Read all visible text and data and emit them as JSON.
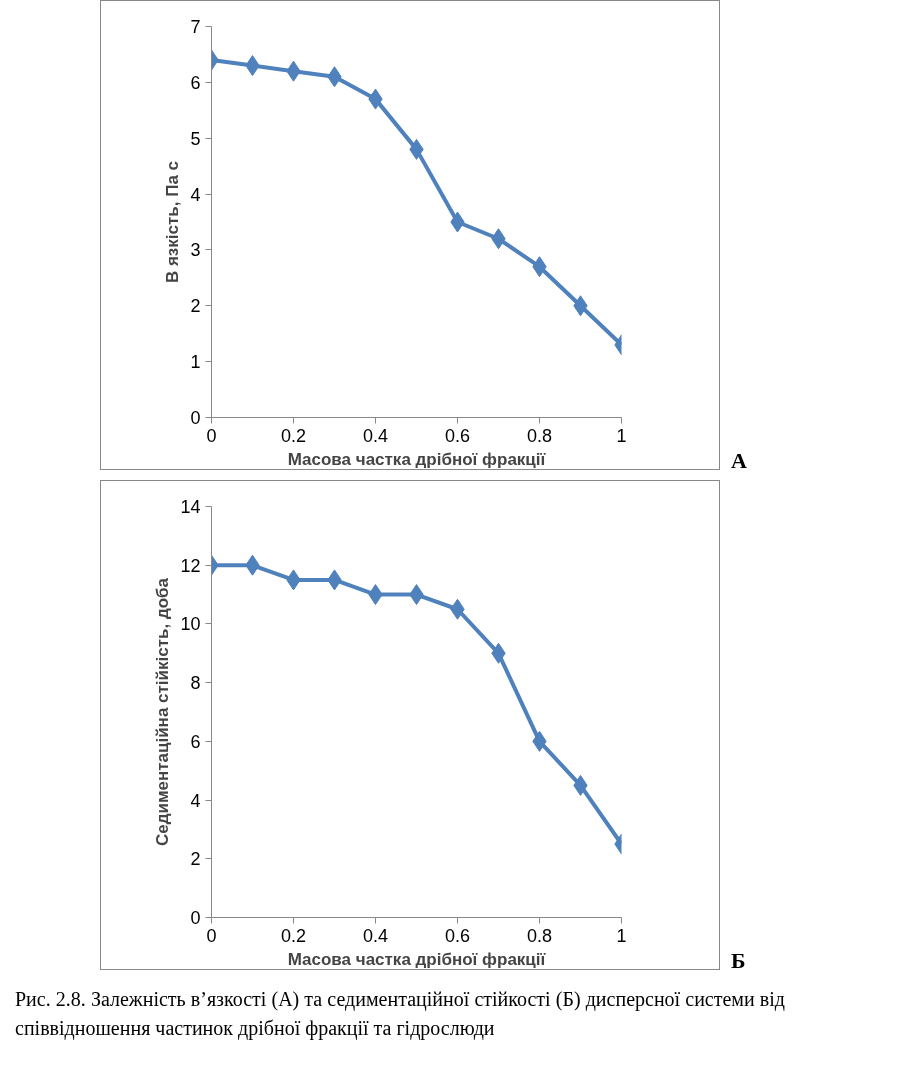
{
  "chart_data": [
    {
      "type": "line",
      "xlabel": "Масова частка дрібної фракції",
      "ylabel": "В язкість, Па с",
      "x": [
        0,
        0.1,
        0.2,
        0.3,
        0.4,
        0.5,
        0.6,
        0.7,
        0.8,
        0.9,
        1
      ],
      "series": [
        {
          "color": "#4f81bd",
          "values": [
            6.4,
            6.3,
            6.2,
            6.1,
            5.7,
            4.8,
            3.5,
            3.2,
            2.7,
            2.0,
            1.3
          ]
        }
      ],
      "xlim": [
        0,
        1
      ],
      "xticks": [
        0,
        0.2,
        0.4,
        0.6,
        0.8,
        1
      ],
      "ylim": [
        0,
        7
      ],
      "yticks": [
        0,
        1,
        2,
        3,
        4,
        5,
        6,
        7
      ],
      "marker": "diamond",
      "grid": false,
      "annotations": [
        "А"
      ]
    },
    {
      "type": "line",
      "xlabel": "Масова частка дрібної фракції",
      "ylabel": "Седиментаційна стійкість, доба",
      "x": [
        0,
        0.1,
        0.2,
        0.3,
        0.4,
        0.5,
        0.6,
        0.7,
        0.8,
        0.9,
        1
      ],
      "series": [
        {
          "color": "#4f81bd",
          "values": [
            12,
            12,
            11.5,
            11.5,
            11,
            11,
            10.5,
            9,
            6,
            4.5,
            2.5
          ]
        }
      ],
      "xlim": [
        0,
        1
      ],
      "xticks": [
        0,
        0.2,
        0.4,
        0.6,
        0.8,
        1
      ],
      "ylim": [
        0,
        14
      ],
      "yticks": [
        0,
        2,
        4,
        6,
        8,
        10,
        12,
        14
      ],
      "marker": "diamond",
      "grid": false,
      "annotations": [
        "Б",
        "Рис. 2.8. Залежність в’язкості (А) та седиментаційної стійкості (Б) дисперсної системи від співвідношення частинок дрібної фракції та гідрослюди"
      ]
    }
  ]
}
